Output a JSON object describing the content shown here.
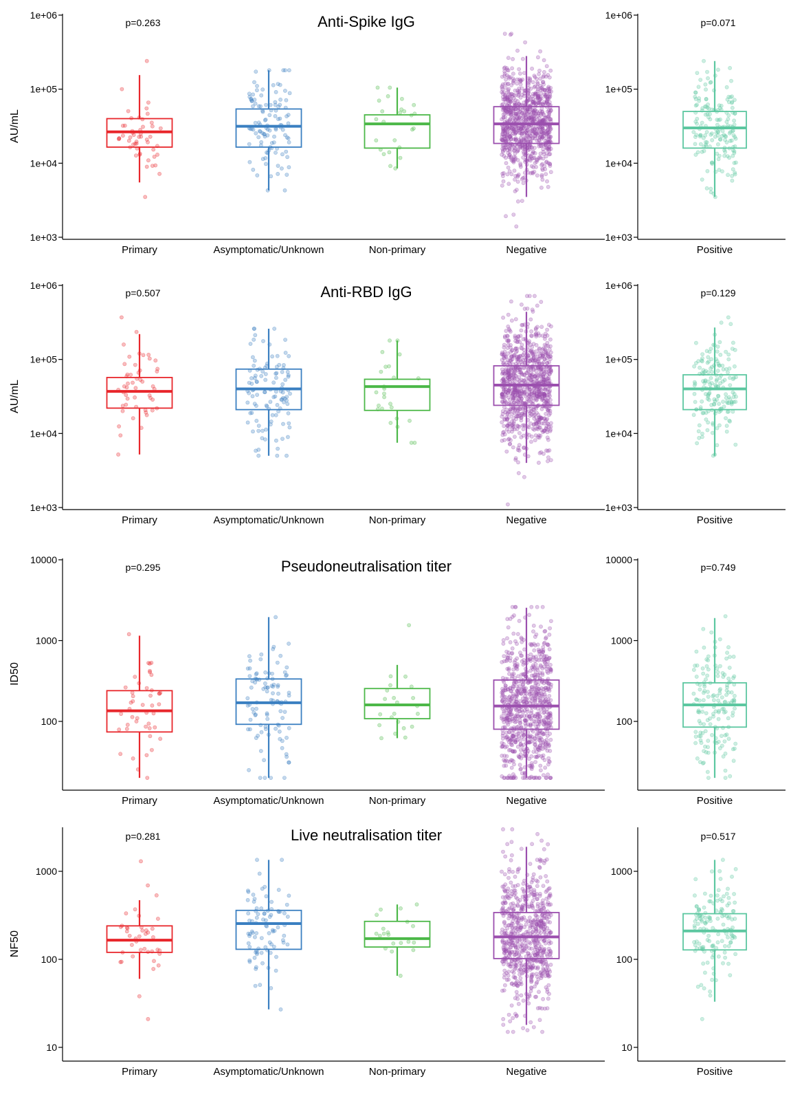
{
  "colors": {
    "Primary": "#e8262b",
    "Asymptomatic/Unknown": "#3a7fc1",
    "Non-primary": "#4cb848",
    "Negative": "#9b4fae",
    "Positive": "#5cc7a0"
  },
  "chart_data": [
    {
      "type": "box",
      "title": "Anti-Spike IgG",
      "ylabel": "AU/mL",
      "yscale": "log",
      "ylim": [
        1000,
        1000000
      ],
      "yticks": [
        1000,
        10000,
        100000,
        1000000
      ],
      "ytick_labels": [
        "1e+03",
        "1e+04",
        "1e+05",
        "1e+06"
      ],
      "left_panel": {
        "p_value": "p=0.263",
        "categories": [
          "Primary",
          "Asymptomatic/Unknown",
          "Non-primary",
          "Negative"
        ],
        "boxes": [
          {
            "category": "Primary",
            "q1": 16500,
            "median": 26500,
            "q3": 40000,
            "whisker_low": 5500,
            "whisker_high": 155000,
            "n": 50,
            "min": 3500,
            "max": 240000
          },
          {
            "category": "Asymptomatic/Unknown",
            "q1": 16500,
            "median": 31500,
            "q3": 54000,
            "whisker_low": 4300,
            "whisker_high": 180000,
            "n": 110,
            "min": 4300,
            "max": 180000
          },
          {
            "category": "Non-primary",
            "q1": 16000,
            "median": 34000,
            "q3": 45000,
            "whisker_low": 8500,
            "whisker_high": 105000,
            "n": 25,
            "min": 8500,
            "max": 105000
          },
          {
            "category": "Negative",
            "q1": 18500,
            "median": 34000,
            "q3": 58000,
            "whisker_low": 3500,
            "whisker_high": 280000,
            "n": 900,
            "min": 1400,
            "max": 560000
          }
        ]
      },
      "right_panel": {
        "p_value": "p=0.071",
        "categories": [
          "Positive"
        ],
        "boxes": [
          {
            "category": "Positive",
            "q1": 16000,
            "median": 30000,
            "q3": 50000,
            "whisker_low": 3500,
            "whisker_high": 240000,
            "n": 170,
            "min": 3500,
            "max": 240000
          }
        ]
      }
    },
    {
      "type": "box",
      "title": "Anti-RBD IgG",
      "ylabel": "AU/mL",
      "yscale": "log",
      "ylim": [
        1000,
        1000000
      ],
      "yticks": [
        1000,
        10000,
        100000,
        1000000
      ],
      "ytick_labels": [
        "1e+03",
        "1e+04",
        "1e+05",
        "1e+06"
      ],
      "left_panel": {
        "p_value": "p=0.507",
        "categories": [
          "Primary",
          "Asymptomatic/Unknown",
          "Non-primary",
          "Negative"
        ],
        "boxes": [
          {
            "category": "Primary",
            "q1": 22000,
            "median": 37000,
            "q3": 57000,
            "whisker_low": 5200,
            "whisker_high": 220000,
            "n": 50,
            "min": 5200,
            "max": 370000
          },
          {
            "category": "Asymptomatic/Unknown",
            "q1": 21000,
            "median": 40000,
            "q3": 74000,
            "whisker_low": 5000,
            "whisker_high": 260000,
            "n": 110,
            "min": 5000,
            "max": 260000
          },
          {
            "category": "Non-primary",
            "q1": 20500,
            "median": 43000,
            "q3": 54000,
            "whisker_low": 7500,
            "whisker_high": 180000,
            "n": 25,
            "min": 7500,
            "max": 180000
          },
          {
            "category": "Negative",
            "q1": 24000,
            "median": 45000,
            "q3": 82000,
            "whisker_low": 4000,
            "whisker_high": 440000,
            "n": 900,
            "min": 1100,
            "max": 720000
          }
        ]
      },
      "right_panel": {
        "p_value": "p=0.129",
        "categories": [
          "Positive"
        ],
        "boxes": [
          {
            "category": "Positive",
            "q1": 21000,
            "median": 40000,
            "q3": 62000,
            "whisker_low": 5000,
            "whisker_high": 270000,
            "n": 170,
            "min": 5000,
            "max": 370000
          }
        ]
      }
    },
    {
      "type": "box",
      "title": "Pseudoneutralisation titer",
      "ylabel": "ID50",
      "yscale": "log",
      "ylim": [
        15,
        10000
      ],
      "yticks": [
        100,
        1000,
        10000
      ],
      "ytick_labels": [
        "100",
        "1000",
        "10000"
      ],
      "left_panel": {
        "p_value": "p=0.295",
        "categories": [
          "Primary",
          "Asymptomatic/Unknown",
          "Non-primary",
          "Negative"
        ],
        "boxes": [
          {
            "category": "Primary",
            "q1": 74,
            "median": 135,
            "q3": 240,
            "whisker_low": 20,
            "whisker_high": 1150,
            "n": 45,
            "min": 20,
            "max": 1200
          },
          {
            "category": "Asymptomatic/Unknown",
            "q1": 92,
            "median": 170,
            "q3": 335,
            "whisker_low": 20,
            "whisker_high": 1950,
            "n": 100,
            "min": 20,
            "max": 1950
          },
          {
            "category": "Non-primary",
            "q1": 108,
            "median": 160,
            "q3": 255,
            "whisker_low": 62,
            "whisker_high": 500,
            "n": 22,
            "min": 62,
            "max": 1550
          },
          {
            "category": "Negative",
            "q1": 80,
            "median": 155,
            "q3": 325,
            "whisker_low": 20,
            "whisker_high": 2550,
            "n": 800,
            "min": 20,
            "max": 2600
          }
        ]
      },
      "right_panel": {
        "p_value": "p=0.749",
        "categories": [
          "Positive"
        ],
        "boxes": [
          {
            "category": "Positive",
            "q1": 85,
            "median": 160,
            "q3": 300,
            "whisker_low": 20,
            "whisker_high": 1900,
            "n": 160,
            "min": 20,
            "max": 2000
          }
        ]
      }
    },
    {
      "type": "box",
      "title": "Live neutralisation titer",
      "ylabel": "NF50",
      "yscale": "log",
      "ylim": [
        8,
        4000
      ],
      "yticks": [
        10,
        100,
        1000
      ],
      "ytick_labels": [
        "10",
        "100",
        "1000"
      ],
      "left_panel": {
        "p_value": "p=0.281",
        "categories": [
          "Primary",
          "Asymptomatic/Unknown",
          "Non-primary",
          "Negative"
        ],
        "boxes": [
          {
            "category": "Primary",
            "q1": 120,
            "median": 165,
            "q3": 240,
            "whisker_low": 60,
            "whisker_high": 470,
            "n": 40,
            "min": 21,
            "max": 1300
          },
          {
            "category": "Asymptomatic/Unknown",
            "q1": 130,
            "median": 255,
            "q3": 360,
            "whisker_low": 27,
            "whisker_high": 1350,
            "n": 85,
            "min": 27,
            "max": 1350
          },
          {
            "category": "Non-primary",
            "q1": 138,
            "median": 172,
            "q3": 270,
            "whisker_low": 65,
            "whisker_high": 420,
            "n": 20,
            "min": 65,
            "max": 420
          },
          {
            "category": "Negative",
            "q1": 102,
            "median": 180,
            "q3": 340,
            "whisker_low": 18,
            "whisker_high": 1900,
            "n": 700,
            "min": 15,
            "max": 3000
          }
        ]
      },
      "right_panel": {
        "p_value": "p=0.517",
        "categories": [
          "Positive"
        ],
        "boxes": [
          {
            "category": "Positive",
            "q1": 128,
            "median": 210,
            "q3": 330,
            "whisker_low": 33,
            "whisker_high": 1350,
            "n": 140,
            "min": 21,
            "max": 1350
          }
        ]
      }
    }
  ]
}
